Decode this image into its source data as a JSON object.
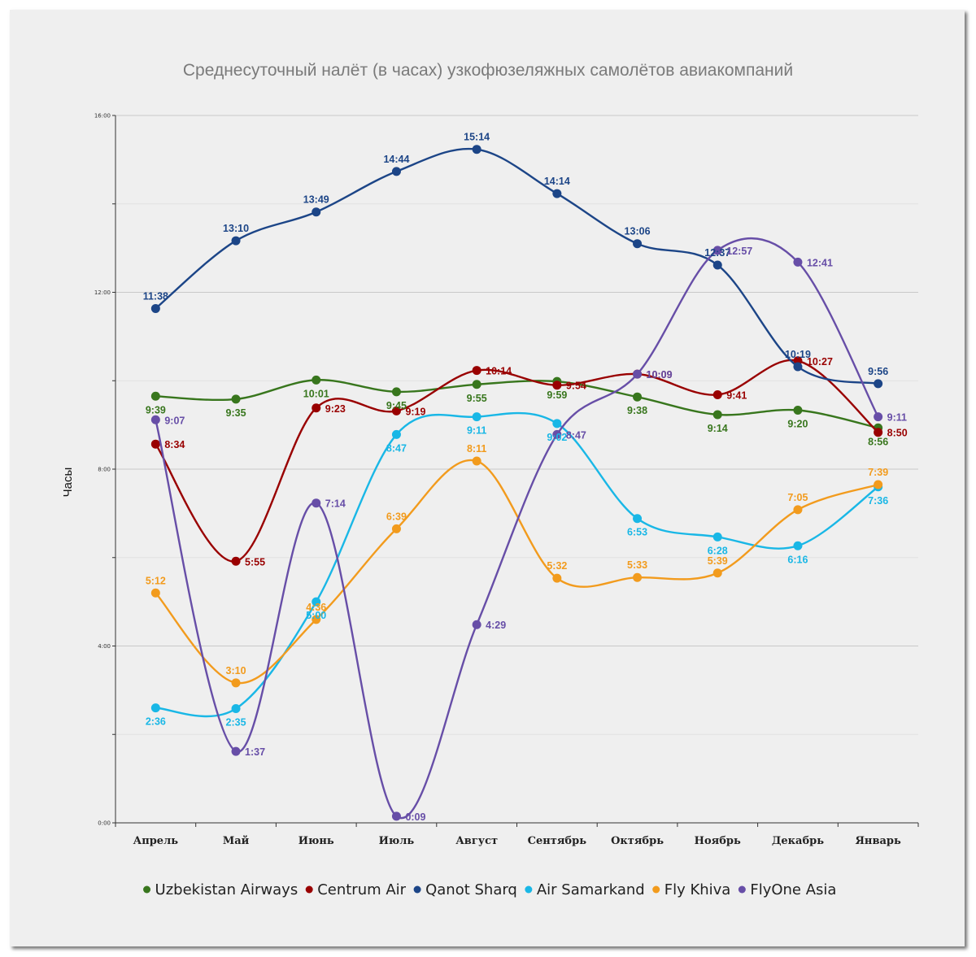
{
  "chart_data": {
    "type": "line",
    "title": "Среднесуточный налёт (в часах) узкофюзеляжных самолётов авиакомпаний",
    "ylabel": "Часы",
    "xlabel": "",
    "ylim": [
      0,
      16
    ],
    "yticks": [
      {
        "value": 0,
        "label": "0:00"
      },
      {
        "value": 4,
        "label": "4:00"
      },
      {
        "value": 8,
        "label": "8:00"
      },
      {
        "value": 12,
        "label": "12:00"
      },
      {
        "value": 16,
        "label": "16:00"
      }
    ],
    "categories": [
      "Апрель",
      "Май",
      "Июнь",
      "Июль",
      "Август",
      "Сентябрь",
      "Октябрь",
      "Ноябрь",
      "Декабрь",
      "Январь"
    ],
    "legend_position": "bottom",
    "series": [
      {
        "name": "Uzbekistan Airways",
        "color": "#38761d",
        "values": [
          "9:39",
          "9:35",
          "10:01",
          "9:45",
          "9:55",
          "9:59",
          "9:38",
          "9:14",
          "9:20",
          "8:56"
        ],
        "label_pos": [
          "below",
          "below",
          "below",
          "below",
          "below",
          "below",
          "below",
          "below",
          "below",
          "below"
        ]
      },
      {
        "name": "Centrum Air",
        "color": "#990000",
        "values": [
          "8:34",
          "5:55",
          "9:23",
          "9:19",
          "10:14",
          "9:54",
          "10:09",
          "9:41",
          "10:27",
          "8:50"
        ],
        "label_pos": [
          "right",
          "right",
          "right",
          "right",
          "right",
          "right",
          "right",
          "right",
          "right",
          "right"
        ]
      },
      {
        "name": "Qanot Sharq",
        "color": "#1c4587",
        "values": [
          "11:38",
          "13:10",
          "13:49",
          "14:44",
          "15:14",
          "14:14",
          "13:06",
          "12:37",
          "10:19",
          "9:56"
        ],
        "label_pos": [
          "above",
          "above",
          "above",
          "above",
          "above",
          "above",
          "above",
          "above",
          "above",
          "above"
        ]
      },
      {
        "name": "Air Samarkand",
        "color": "#19b7e6",
        "values": [
          "2:36",
          "2:35",
          "5:00",
          "8:47",
          "9:11",
          "9:02",
          "6:53",
          "6:28",
          "6:16",
          "7:36"
        ],
        "label_pos": [
          "below",
          "below",
          "below",
          "below",
          "below",
          "below",
          "below",
          "below",
          "below",
          "below"
        ]
      },
      {
        "name": "Fly Khiva",
        "color": "#f29b1d",
        "values": [
          "5:12",
          "3:10",
          "4:36",
          "6:39",
          "8:11",
          "5:32",
          "5:33",
          "5:39",
          "7:05",
          "7:39"
        ],
        "label_pos": [
          "above",
          "above",
          "above",
          "above",
          "above",
          "above",
          "above",
          "above",
          "above",
          "above"
        ]
      },
      {
        "name": "FlyOne Asia",
        "color": "#674ea7",
        "values": [
          "9:07",
          "1:37",
          "7:14",
          "0:09",
          "4:29",
          "8:47",
          "10:09",
          "12:57",
          "12:41",
          "9:11"
        ],
        "label_pos": [
          "right",
          "right",
          "right",
          "right",
          "right",
          "right",
          "right",
          "right",
          "right",
          "right"
        ]
      }
    ]
  }
}
